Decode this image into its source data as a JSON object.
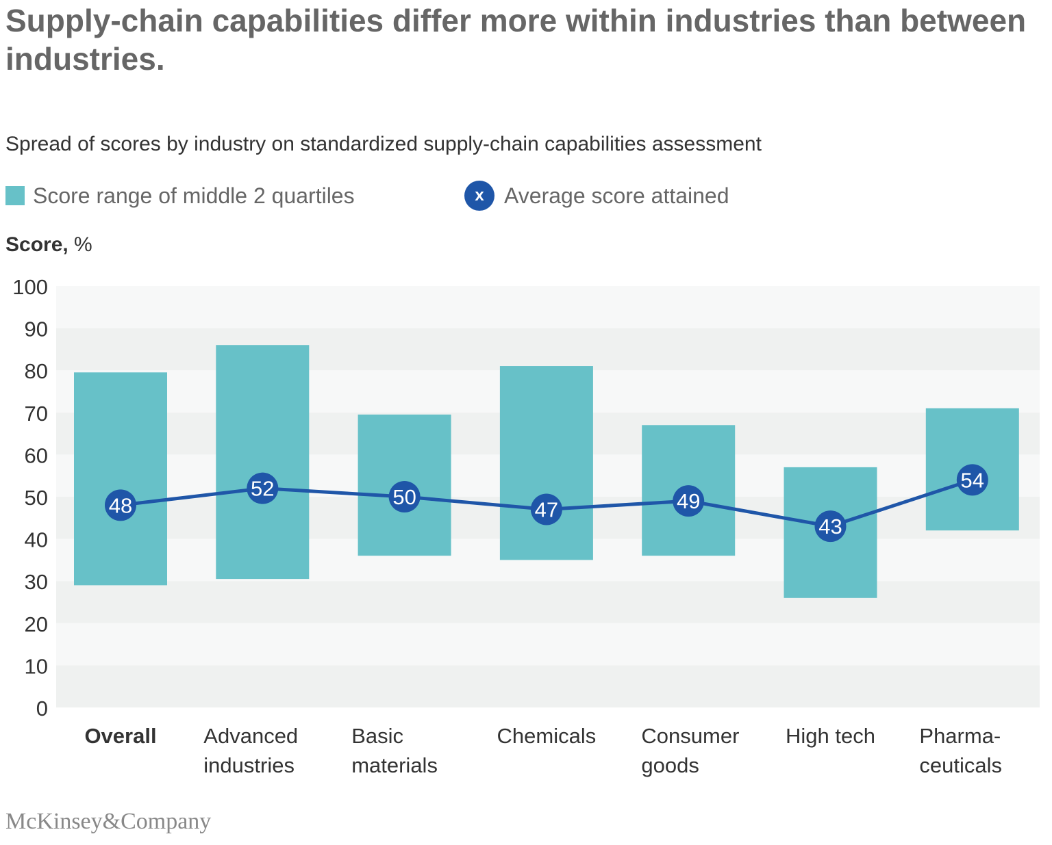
{
  "header": {
    "title": "Supply-chain capabilities differ more within industries than between industries.",
    "subtitle": "Spread of scores by industry on standardized supply-chain capabilities assessment"
  },
  "legend": {
    "range_label": "Score range of middle 2 quartiles",
    "average_label": "Average score attained",
    "average_marker_text": "x"
  },
  "axis": {
    "ylabel_main": "Score,",
    "ylabel_unit": " %"
  },
  "colors": {
    "bar": "#67c1c8",
    "line": "#1f56a8",
    "marker": "#1f56a8",
    "band_light": "#f7f8f8",
    "band_dark": "#eff1f0",
    "tick_text": "#333333",
    "category_text": "#333333"
  },
  "chart_data": {
    "type": "bar",
    "categories": [
      {
        "lines": [
          "Overall"
        ],
        "bold": true
      },
      {
        "lines": [
          "Advanced",
          "industries"
        ],
        "bold": false
      },
      {
        "lines": [
          "Basic",
          "materials"
        ],
        "bold": false
      },
      {
        "lines": [
          "Chemicals"
        ],
        "bold": false
      },
      {
        "lines": [
          "Consumer",
          "goods"
        ],
        "bold": false
      },
      {
        "lines": [
          "High tech"
        ],
        "bold": false
      },
      {
        "lines": [
          "Pharma-",
          "ceuticals"
        ],
        "bold": false
      }
    ],
    "series": [
      {
        "name": "Score range of middle 2 quartiles",
        "type": "floating-bar",
        "low": [
          29,
          30.5,
          36,
          35,
          36,
          26,
          42
        ],
        "high": [
          79.5,
          86,
          69.5,
          81,
          67,
          57,
          71
        ]
      },
      {
        "name": "Average score attained",
        "type": "line",
        "values": [
          48,
          52,
          50,
          47,
          49,
          43,
          54
        ]
      }
    ],
    "ylabel": "Score, %",
    "ylim": [
      0,
      100
    ],
    "yticks": [
      0,
      10,
      20,
      30,
      40,
      50,
      60,
      70,
      80,
      90,
      100
    ],
    "grid": "alternating horizontal bands",
    "legend": "top-left"
  },
  "footer": {
    "logo_text": "McKinsey&Company"
  }
}
